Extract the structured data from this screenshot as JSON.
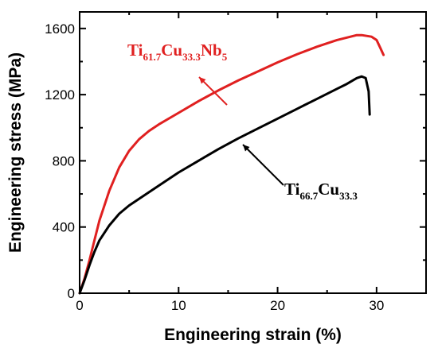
{
  "chart_data": {
    "type": "line",
    "xlabel": "Engineering strain (%)",
    "ylabel": "Engineering stress (MPa)",
    "xlim": [
      0,
      35
    ],
    "ylim": [
      0,
      1700
    ],
    "xticks": [
      0,
      10,
      20,
      30
    ],
    "yticks": [
      0,
      400,
      800,
      1200,
      1600
    ],
    "grid": false,
    "series": [
      {
        "name": "Ti61.7Cu33.3Nb5",
        "label_parts": [
          {
            "text": "Ti",
            "sub": false
          },
          {
            "text": "61.7",
            "sub": true
          },
          {
            "text": "Cu",
            "sub": false
          },
          {
            "text": "33.3",
            "sub": true
          },
          {
            "text": "Nb",
            "sub": false
          },
          {
            "text": "5",
            "sub": true
          }
        ],
        "color": "#e02020",
        "x": [
          0,
          0.5,
          1,
          1.5,
          2,
          3,
          4,
          5,
          6,
          7,
          8,
          10,
          12,
          14,
          16,
          18,
          20,
          22,
          24,
          26,
          27,
          28,
          28.5,
          29.5,
          30,
          30.4,
          30.7
        ],
        "y": [
          0,
          90,
          200,
          320,
          440,
          620,
          760,
          860,
          930,
          980,
          1020,
          1090,
          1160,
          1225,
          1285,
          1340,
          1395,
          1445,
          1490,
          1530,
          1545,
          1560,
          1560,
          1550,
          1530,
          1480,
          1440
        ]
      },
      {
        "name": "Ti66.7Cu33.3",
        "label_parts": [
          {
            "text": "Ti",
            "sub": false
          },
          {
            "text": "66.7",
            "sub": true
          },
          {
            "text": "Cu",
            "sub": false
          },
          {
            "text": "33.3",
            "sub": true
          }
        ],
        "color": "#000000",
        "x": [
          0,
          0.5,
          1,
          1.5,
          2,
          3,
          4,
          5,
          6,
          8,
          10,
          12,
          14,
          16,
          18,
          20,
          22,
          24,
          26,
          27,
          28,
          28.5,
          28.9,
          29.2,
          29.3
        ],
        "y": [
          0,
          80,
          170,
          250,
          320,
          410,
          480,
          530,
          570,
          650,
          730,
          800,
          870,
          935,
          995,
          1055,
          1115,
          1175,
          1235,
          1265,
          1300,
          1310,
          1300,
          1220,
          1080
        ]
      }
    ]
  }
}
